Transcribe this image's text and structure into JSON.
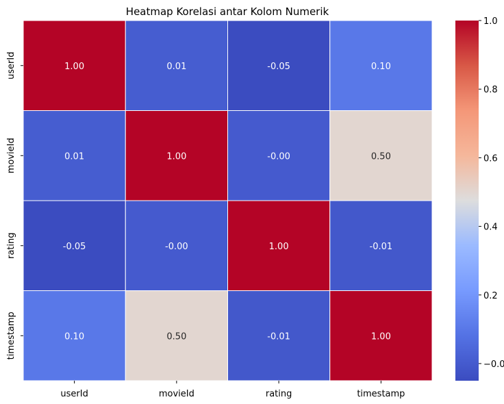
{
  "chart_data": {
    "type": "heatmap",
    "title": "Heatmap Korelasi antar Kolom Numerik",
    "x_categories": [
      "userId",
      "movieId",
      "rating",
      "timestamp"
    ],
    "y_categories": [
      "userId",
      "movieId",
      "rating",
      "timestamp"
    ],
    "values": [
      [
        1.0,
        0.01,
        -0.05,
        0.1
      ],
      [
        0.01,
        1.0,
        -0.0,
        0.5
      ],
      [
        -0.05,
        -0.0,
        1.0,
        -0.01
      ],
      [
        0.1,
        0.5,
        -0.01,
        1.0
      ]
    ],
    "cell_labels": [
      [
        "1.00",
        "0.01",
        "-0.05",
        "0.10"
      ],
      [
        "0.01",
        "1.00",
        "-0.00",
        "0.50"
      ],
      [
        "-0.05",
        "-0.00",
        "1.00",
        "-0.01"
      ],
      [
        "0.10",
        "0.50",
        "-0.01",
        "1.00"
      ]
    ],
    "colormap": "coolwarm",
    "vmin": -0.05,
    "vmax": 1.0,
    "colorbar": {
      "ticks": [
        0.0,
        0.2,
        0.4,
        0.6,
        0.8,
        1.0
      ],
      "tick_labels": [
        "−0.0",
        "0.2",
        "0.4",
        "0.6",
        "0.8",
        "1.0"
      ],
      "position": "right"
    },
    "cell_border_color": "#ffffff",
    "grid": false
  }
}
